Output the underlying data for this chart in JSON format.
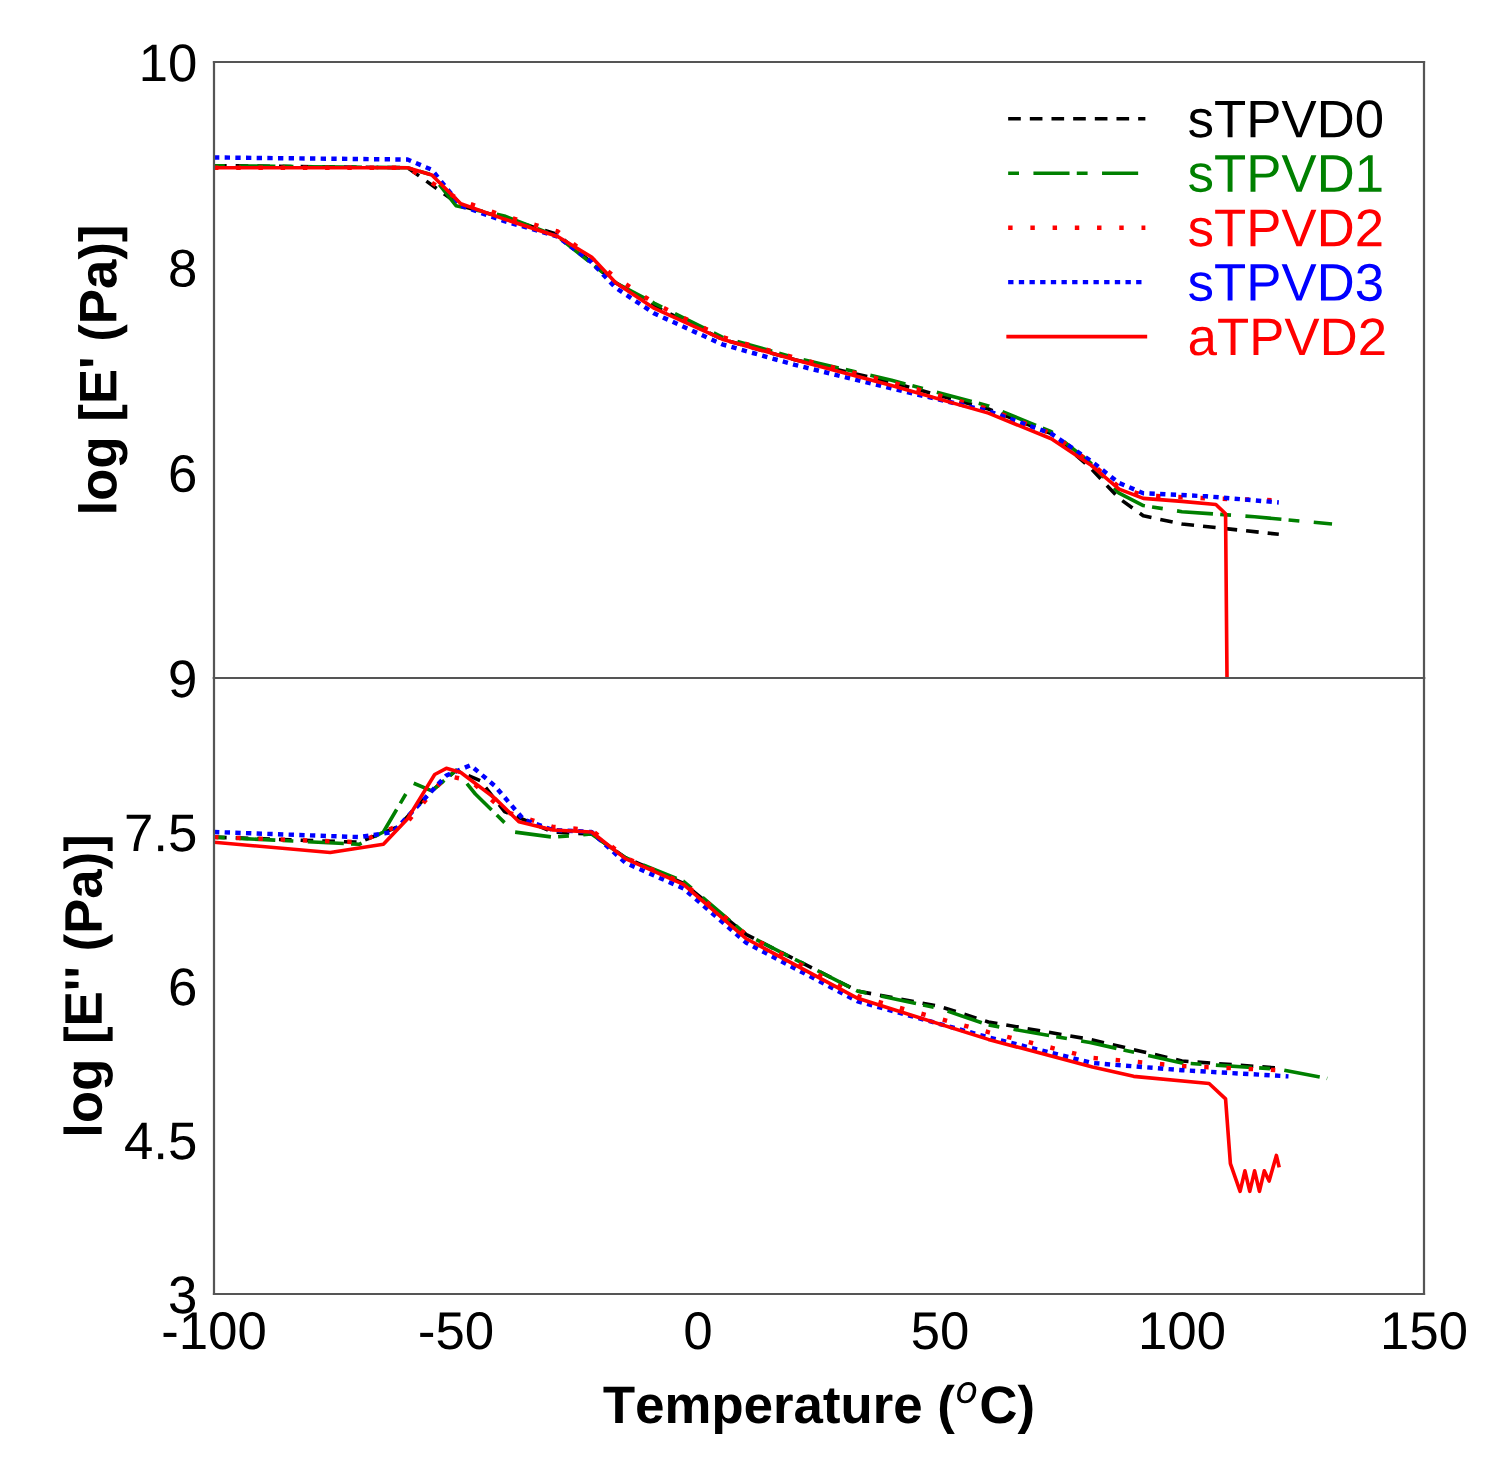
{
  "chart_data": [
    {
      "type": "line",
      "ylabel": "log [E' (Pa)]",
      "xlim": [
        -100,
        150
      ],
      "ylim": [
        4,
        10
      ],
      "yticks": [
        10,
        8,
        6
      ],
      "tick_labels": "y",
      "legend": "top right",
      "grid": false,
      "series": [
        {
          "name": "sTPVD0",
          "color": "#000000",
          "line_style": "dashed",
          "x": [
            -100,
            -60,
            -49,
            -40,
            -29,
            -17,
            -9,
            5,
            20,
            40,
            60,
            73,
            81,
            87,
            92,
            100,
            110,
            120
          ],
          "values": [
            8.99,
            8.97,
            8.6,
            8.48,
            8.32,
            7.85,
            7.62,
            7.3,
            7.1,
            6.88,
            6.62,
            6.38,
            6.05,
            5.75,
            5.58,
            5.5,
            5.45,
            5.4
          ]
        },
        {
          "name": "sTPVD1",
          "color": "#008000",
          "line_style": "dashdot",
          "x": [
            -100,
            -60,
            -55,
            -50,
            -40,
            -29,
            -17,
            -9,
            5,
            20,
            40,
            60,
            73,
            81,
            87,
            92,
            100,
            115,
            131
          ],
          "values": [
            8.99,
            8.97,
            8.9,
            8.6,
            8.5,
            8.3,
            7.85,
            7.65,
            7.32,
            7.12,
            6.9,
            6.65,
            6.4,
            6.1,
            5.8,
            5.68,
            5.62,
            5.57,
            5.5
          ]
        },
        {
          "name": "sTPVD2",
          "color": "#ff0000",
          "line_style": "loosedot",
          "x": [
            -100,
            -60,
            -49,
            -40,
            -29,
            -17,
            -9,
            5,
            20,
            40,
            60,
            73,
            81,
            87,
            92,
            105,
            120
          ],
          "values": [
            8.97,
            8.97,
            8.65,
            8.5,
            8.35,
            7.9,
            7.65,
            7.32,
            7.12,
            6.88,
            6.62,
            6.38,
            6.1,
            5.86,
            5.78,
            5.75,
            5.73
          ]
        },
        {
          "name": "sTPVD3",
          "color": "#0000ff",
          "line_style": "dotted",
          "x": [
            -100,
            -60,
            -55,
            -49,
            -40,
            -29,
            -22,
            -17,
            -9,
            5,
            20,
            40,
            60,
            73,
            81,
            87,
            92,
            105,
            120
          ],
          "values": [
            9.07,
            9.05,
            8.95,
            8.6,
            8.45,
            8.3,
            8.05,
            7.8,
            7.55,
            7.25,
            7.05,
            6.82,
            6.6,
            6.38,
            6.12,
            5.9,
            5.8,
            5.77,
            5.71
          ]
        },
        {
          "name": "aTPVD2",
          "color": "#ff0000",
          "line_style": "solid",
          "x": [
            -100,
            -60,
            -55,
            -49,
            -40,
            -29,
            -22,
            -17,
            -9,
            5,
            20,
            40,
            60,
            73,
            81,
            87,
            92,
            100,
            107,
            109,
            109.3
          ],
          "values": [
            8.97,
            8.97,
            8.9,
            8.62,
            8.47,
            8.3,
            8.1,
            7.85,
            7.6,
            7.3,
            7.1,
            6.85,
            6.58,
            6.33,
            6.08,
            5.84,
            5.75,
            5.72,
            5.69,
            5.6,
            4.0
          ]
        }
      ]
    },
    {
      "type": "line",
      "ylabel": "log [E'' (Pa)]",
      "xlabel": "Temperature ($^{o}$C)",
      "xlim": [
        -100,
        150
      ],
      "xticks": [
        -100,
        -50,
        0,
        50,
        100,
        150
      ],
      "ylim": [
        3,
        9
      ],
      "yticks": [
        9,
        7.5,
        6,
        4.5,
        3
      ],
      "grid": false,
      "series": [
        {
          "color": "#000000",
          "line_style": "dashed",
          "x": [
            -100,
            -70,
            -62,
            -55,
            -50,
            -45,
            -40,
            -30,
            -22,
            -15,
            -3,
            10,
            33,
            50,
            60,
            81,
            100,
            120
          ],
          "values": [
            7.45,
            7.4,
            7.55,
            7.9,
            8.1,
            8.0,
            7.7,
            7.5,
            7.48,
            7.25,
            7.0,
            6.5,
            5.95,
            5.8,
            5.65,
            5.48,
            5.27,
            5.2
          ]
        },
        {
          "color": "#008000",
          "line_style": "dashdot",
          "x": [
            -100,
            -70,
            -65,
            -59,
            -55,
            -50,
            -46,
            -38,
            -30,
            -22,
            -15,
            -3,
            10,
            33,
            50,
            60,
            81,
            100,
            120,
            130
          ],
          "values": [
            7.45,
            7.38,
            7.5,
            7.98,
            7.9,
            8.1,
            7.87,
            7.5,
            7.45,
            7.48,
            7.25,
            7.02,
            6.5,
            5.95,
            5.78,
            5.62,
            5.45,
            5.25,
            5.19,
            5.1
          ]
        },
        {
          "color": "#ff0000",
          "line_style": "loosedot",
          "x": [
            -100,
            -70,
            -60,
            -52,
            -47,
            -40,
            -30,
            -22,
            -15,
            -3,
            10,
            33,
            60,
            81.5,
            100,
            120
          ],
          "values": [
            7.45,
            7.4,
            7.6,
            8.05,
            8.0,
            7.7,
            7.55,
            7.52,
            7.25,
            7.0,
            6.5,
            5.9,
            5.55,
            5.3,
            5.22,
            5.18
          ]
        },
        {
          "color": "#0000ff",
          "line_style": "dotted",
          "x": [
            -100,
            -70,
            -63,
            -57,
            -52,
            -47,
            -42,
            -36,
            -30,
            -22,
            -15,
            -3,
            10,
            33,
            60,
            81.5,
            100,
            122
          ],
          "values": [
            7.5,
            7.45,
            7.5,
            7.8,
            8.05,
            8.15,
            7.95,
            7.62,
            7.52,
            7.5,
            7.2,
            6.95,
            6.42,
            5.85,
            5.5,
            5.25,
            5.18,
            5.12
          ]
        },
        {
          "color": "#ff0000",
          "line_style": "solid",
          "x": [
            -100,
            -76,
            -65,
            -60,
            -54.4,
            -52,
            -49,
            -42,
            -37,
            -30,
            -22,
            -15,
            -3,
            10,
            33,
            60,
            81.5,
            90,
            105.6,
            109,
            110,
            112,
            113,
            114,
            115,
            116,
            117,
            118,
            119.5,
            120
          ],
          "values": [
            7.4,
            7.3,
            7.38,
            7.63,
            8.06,
            8.12,
            8.08,
            7.83,
            7.6,
            7.52,
            7.5,
            7.24,
            6.99,
            6.46,
            5.88,
            5.48,
            5.21,
            5.12,
            5.05,
            4.9,
            4.27,
            4.0,
            4.2,
            4.0,
            4.2,
            4.0,
            4.2,
            4.1,
            4.35,
            4.25
          ]
        }
      ]
    }
  ]
}
